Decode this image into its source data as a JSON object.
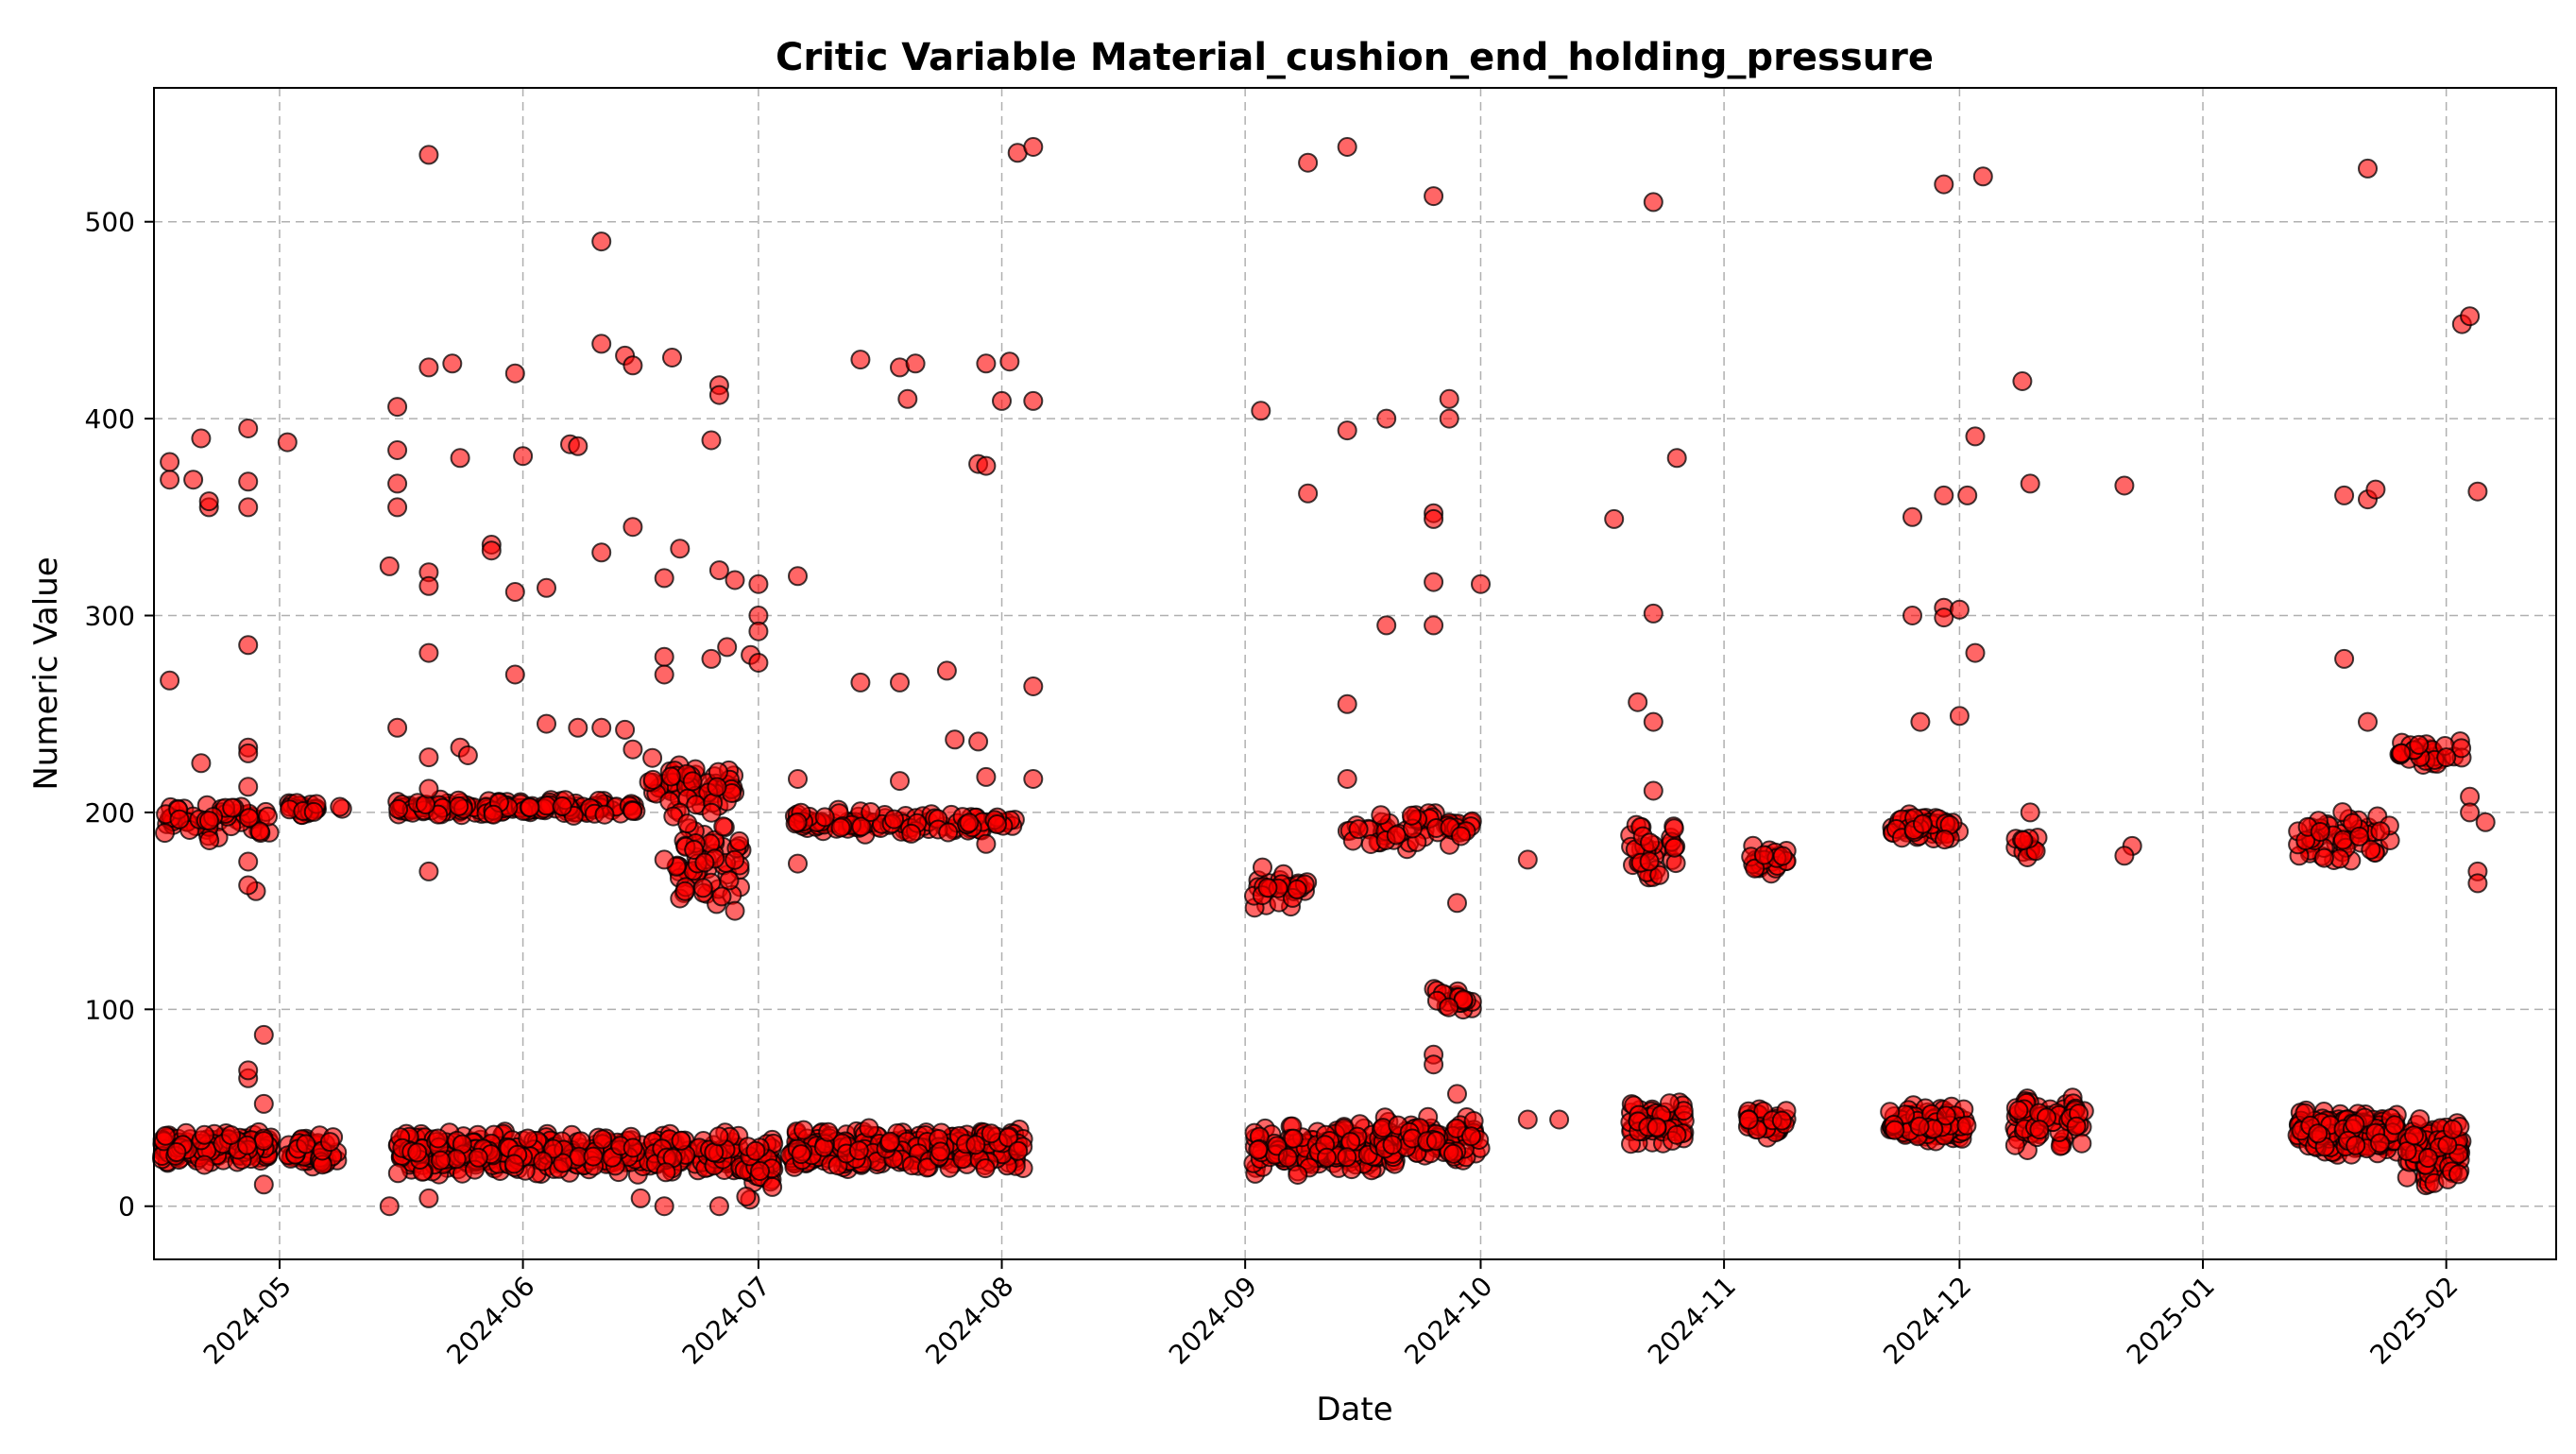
{
  "chart_data": {
    "type": "scatter",
    "title": "Critic Variable Material_cushion_end_holding_pressure",
    "xlabel": "Date",
    "ylabel": "Numeric Value",
    "grid": true,
    "xlim_days": [
      -16,
      290
    ],
    "ylim": [
      -27,
      568
    ],
    "y_ticks": [
      0,
      100,
      200,
      300,
      400,
      500
    ],
    "x_ticks": [
      {
        "label": "2024-05",
        "day": 0
      },
      {
        "label": "2024-06",
        "day": 31
      },
      {
        "label": "2024-07",
        "day": 61
      },
      {
        "label": "2024-08",
        "day": 92
      },
      {
        "label": "2024-09",
        "day": 123
      },
      {
        "label": "2024-10",
        "day": 153
      },
      {
        "label": "2024-11",
        "day": 184
      },
      {
        "label": "2024-12",
        "day": 214
      },
      {
        "label": "2025-01",
        "day": 245
      },
      {
        "label": "2025-02",
        "day": 276
      }
    ],
    "x_reference_date": "2024-05-01",
    "point_fill": "#ff0000",
    "point_edge": "#000000",
    "clusters": [
      {
        "d0": -15,
        "d1": -1,
        "v0": 20,
        "v1": 38,
        "n": 160
      },
      {
        "d0": -15,
        "d1": -1,
        "v0": 185,
        "v1": 206,
        "n": 60
      },
      {
        "d0": 1,
        "d1": 8,
        "v0": 18,
        "v1": 36,
        "n": 70
      },
      {
        "d0": 1,
        "d1": 8,
        "v0": 198,
        "v1": 206,
        "n": 25
      },
      {
        "d0": 15,
        "d1": 59,
        "v0": 15,
        "v1": 38,
        "n": 420
      },
      {
        "d0": 15,
        "d1": 46,
        "v0": 198,
        "v1": 207,
        "n": 150
      },
      {
        "d0": 47,
        "d1": 58,
        "v0": 200,
        "v1": 228,
        "n": 60
      },
      {
        "d0": 50,
        "d1": 59,
        "v0": 150,
        "v1": 205,
        "n": 60
      },
      {
        "d0": 59,
        "d1": 63,
        "v0": 0,
        "v1": 38,
        "n": 40
      },
      {
        "d0": 65,
        "d1": 95,
        "v0": 18,
        "v1": 40,
        "n": 300
      },
      {
        "d0": 65,
        "d1": 94,
        "v0": 188,
        "v1": 202,
        "n": 110
      },
      {
        "d0": 124,
        "d1": 140,
        "v0": 15,
        "v1": 42,
        "n": 160
      },
      {
        "d0": 124,
        "d1": 131,
        "v0": 145,
        "v1": 175,
        "n": 30
      },
      {
        "d0": 136,
        "d1": 152,
        "v0": 180,
        "v1": 202,
        "n": 60
      },
      {
        "d0": 140,
        "d1": 153,
        "v0": 20,
        "v1": 47,
        "n": 100
      },
      {
        "d0": 147,
        "d1": 152,
        "v0": 98,
        "v1": 112,
        "n": 20
      },
      {
        "d0": 172,
        "d1": 179,
        "v0": 30,
        "v1": 55,
        "n": 60
      },
      {
        "d0": 172,
        "d1": 178,
        "v0": 165,
        "v1": 196,
        "n": 35
      },
      {
        "d0": 187,
        "d1": 192,
        "v0": 34,
        "v1": 52,
        "n": 40
      },
      {
        "d0": 187,
        "d1": 192,
        "v0": 168,
        "v1": 184,
        "n": 25
      },
      {
        "d0": 205,
        "d1": 215,
        "v0": 30,
        "v1": 52,
        "n": 110
      },
      {
        "d0": 205,
        "d1": 214,
        "v0": 185,
        "v1": 200,
        "n": 50
      },
      {
        "d0": 221,
        "d1": 230,
        "v0": 28,
        "v1": 58,
        "n": 60
      },
      {
        "d0": 221,
        "d1": 224,
        "v0": 176,
        "v1": 190,
        "n": 15
      },
      {
        "d0": 257,
        "d1": 270,
        "v0": 25,
        "v1": 50,
        "n": 180
      },
      {
        "d0": 257,
        "d1": 269,
        "v0": 172,
        "v1": 205,
        "n": 55
      },
      {
        "d0": 271,
        "d1": 278,
        "v0": 10,
        "v1": 46,
        "n": 110
      },
      {
        "d0": 270,
        "d1": 278,
        "v0": 222,
        "v1": 238,
        "n": 30
      }
    ],
    "outliers": [
      [
        -14,
        267
      ],
      [
        -14,
        369
      ],
      [
        -14,
        378
      ],
      [
        -11,
        369
      ],
      [
        -10,
        390
      ],
      [
        -10,
        225
      ],
      [
        -9,
        355
      ],
      [
        -9,
        358
      ],
      [
        -4,
        395
      ],
      [
        -4,
        355
      ],
      [
        -4,
        368
      ],
      [
        -4,
        285
      ],
      [
        -4,
        233
      ],
      [
        -4,
        230
      ],
      [
        -4,
        213
      ],
      [
        -4,
        65
      ],
      [
        -4,
        69
      ],
      [
        -3,
        160
      ],
      [
        -2,
        87
      ],
      [
        -2,
        52
      ],
      [
        -2,
        11
      ],
      [
        1,
        388
      ],
      [
        -4,
        163
      ],
      [
        -4,
        175
      ],
      [
        14,
        0
      ],
      [
        15,
        406
      ],
      [
        15,
        384
      ],
      [
        15,
        367
      ],
      [
        15,
        355
      ],
      [
        14,
        325
      ],
      [
        15,
        243
      ],
      [
        19,
        534
      ],
      [
        19,
        426
      ],
      [
        19,
        322
      ],
      [
        19,
        315
      ],
      [
        19,
        281
      ],
      [
        19,
        228
      ],
      [
        19,
        212
      ],
      [
        19,
        170
      ],
      [
        19,
        4
      ],
      [
        22,
        428
      ],
      [
        23,
        380
      ],
      [
        23,
        233
      ],
      [
        24,
        229
      ],
      [
        27,
        336
      ],
      [
        27,
        333
      ],
      [
        30,
        423
      ],
      [
        30,
        312
      ],
      [
        30,
        270
      ],
      [
        31,
        381
      ],
      [
        34,
        314
      ],
      [
        34,
        245
      ],
      [
        37,
        387
      ],
      [
        38,
        386
      ],
      [
        38,
        243
      ],
      [
        41,
        490
      ],
      [
        41,
        438
      ],
      [
        41,
        332
      ],
      [
        41,
        243
      ],
      [
        44,
        432
      ],
      [
        44,
        242
      ],
      [
        45,
        427
      ],
      [
        45,
        345
      ],
      [
        45,
        232
      ],
      [
        46,
        4
      ],
      [
        50,
        431
      ],
      [
        49,
        319
      ],
      [
        49,
        279
      ],
      [
        49,
        270
      ],
      [
        49,
        176
      ],
      [
        49,
        0
      ],
      [
        51,
        334
      ],
      [
        55,
        389
      ],
      [
        56,
        417
      ],
      [
        56,
        412
      ],
      [
        55,
        278
      ],
      [
        56,
        323
      ],
      [
        56,
        0
      ],
      [
        58,
        318
      ],
      [
        57,
        284
      ],
      [
        60,
        280
      ],
      [
        61,
        316
      ],
      [
        61,
        300
      ],
      [
        61,
        276
      ],
      [
        61,
        292
      ],
      [
        58,
        150
      ],
      [
        66,
        320
      ],
      [
        66,
        217
      ],
      [
        66,
        174
      ],
      [
        74,
        430
      ],
      [
        74,
        266
      ],
      [
        79,
        426
      ],
      [
        80,
        410
      ],
      [
        79,
        266
      ],
      [
        81,
        428
      ],
      [
        79,
        216
      ],
      [
        85,
        272
      ],
      [
        86,
        237
      ],
      [
        89,
        377
      ],
      [
        90,
        376
      ],
      [
        90,
        428
      ],
      [
        89,
        236
      ],
      [
        90,
        218
      ],
      [
        90,
        184
      ],
      [
        92,
        409
      ],
      [
        93,
        429
      ],
      [
        94,
        535
      ],
      [
        96,
        538
      ],
      [
        96,
        409
      ],
      [
        96,
        264
      ],
      [
        96,
        217
      ],
      [
        125,
        404
      ],
      [
        131,
        530
      ],
      [
        131,
        362
      ],
      [
        136,
        538
      ],
      [
        136,
        394
      ],
      [
        136,
        255
      ],
      [
        136,
        217
      ],
      [
        141,
        400
      ],
      [
        141,
        295
      ],
      [
        147,
        513
      ],
      [
        147,
        352
      ],
      [
        147,
        349
      ],
      [
        147,
        317
      ],
      [
        147,
        295
      ],
      [
        147,
        77
      ],
      [
        147,
        72
      ],
      [
        149,
        410
      ],
      [
        149,
        400
      ],
      [
        150,
        57
      ],
      [
        150,
        154
      ],
      [
        153,
        316
      ],
      [
        159,
        176
      ],
      [
        159,
        44
      ],
      [
        163,
        44
      ],
      [
        170,
        349
      ],
      [
        173,
        256
      ],
      [
        175,
        510
      ],
      [
        175,
        301
      ],
      [
        175,
        246
      ],
      [
        175,
        211
      ],
      [
        178,
        380
      ],
      [
        208,
        350
      ],
      [
        208,
        300
      ],
      [
        209,
        246
      ],
      [
        212,
        519
      ],
      [
        212,
        361
      ],
      [
        212,
        304
      ],
      [
        212,
        299
      ],
      [
        215,
        361
      ],
      [
        216,
        391
      ],
      [
        216,
        281
      ],
      [
        217,
        523
      ],
      [
        214,
        303
      ],
      [
        214,
        249
      ],
      [
        222,
        419
      ],
      [
        223,
        367
      ],
      [
        223,
        200
      ],
      [
        235,
        366
      ],
      [
        236,
        183
      ],
      [
        235,
        178
      ],
      [
        263,
        361
      ],
      [
        263,
        278
      ],
      [
        266,
        527
      ],
      [
        266,
        359
      ],
      [
        267,
        364
      ],
      [
        266,
        246
      ],
      [
        278,
        448
      ],
      [
        279,
        452
      ],
      [
        280,
        363
      ],
      [
        279,
        208
      ],
      [
        279,
        200
      ],
      [
        280,
        170
      ],
      [
        280,
        164
      ],
      [
        281,
        195
      ],
      [
        276,
        228
      ]
    ]
  }
}
